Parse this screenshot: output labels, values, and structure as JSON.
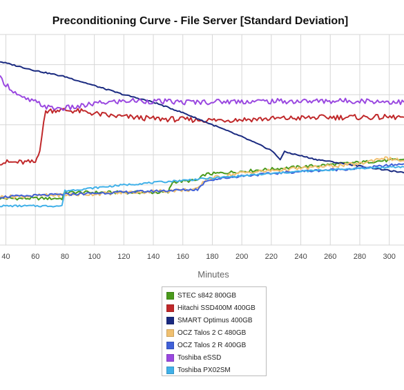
{
  "chart_data": {
    "type": "line",
    "title": "Preconditioning Curve - File Server [Standard Deviation]",
    "xlabel": "Minutes",
    "ylabel": "",
    "x_ticks": [
      40,
      60,
      80,
      100,
      120,
      140,
      160,
      180,
      200,
      220,
      240,
      260,
      280,
      300
    ],
    "xlim": [
      36,
      310
    ],
    "ylim": [
      0,
      7
    ],
    "grid": true,
    "legend_position": "bottom",
    "series": [
      {
        "name": "STEC s842 800GB",
        "color": "#4a9a1c",
        "points": [
          [
            36,
            1.55
          ],
          [
            50,
            1.55
          ],
          [
            78,
            1.55
          ],
          [
            80,
            1.75
          ],
          [
            100,
            1.75
          ],
          [
            150,
            1.75
          ],
          [
            153,
            2.1
          ],
          [
            170,
            2.15
          ],
          [
            175,
            2.35
          ],
          [
            200,
            2.45
          ],
          [
            240,
            2.6
          ],
          [
            280,
            2.75
          ],
          [
            310,
            2.85
          ]
        ]
      },
      {
        "name": "Hitachi SSD400M 400GB",
        "color": "#c0282a",
        "points": [
          [
            36,
            2.75
          ],
          [
            60,
            2.75
          ],
          [
            63,
            3.2
          ],
          [
            67,
            4.45
          ],
          [
            75,
            4.5
          ],
          [
            90,
            4.45
          ],
          [
            110,
            4.3
          ],
          [
            140,
            4.2
          ],
          [
            180,
            4.15
          ],
          [
            220,
            4.2
          ],
          [
            260,
            4.25
          ],
          [
            310,
            4.25
          ]
        ]
      },
      {
        "name": "SMART Optimus 400GB",
        "color": "#1a2a80",
        "points": [
          [
            36,
            6.1
          ],
          [
            60,
            5.8
          ],
          [
            80,
            5.6
          ],
          [
            100,
            5.3
          ],
          [
            120,
            5.0
          ],
          [
            140,
            4.75
          ],
          [
            160,
            4.4
          ],
          [
            180,
            4.0
          ],
          [
            200,
            3.6
          ],
          [
            220,
            3.15
          ],
          [
            226,
            2.85
          ],
          [
            229,
            3.1
          ],
          [
            250,
            2.85
          ],
          [
            270,
            2.7
          ],
          [
            290,
            2.55
          ],
          [
            310,
            2.4
          ]
        ]
      },
      {
        "name": "OCZ Talos 2 C 480GB",
        "color": "#f0c070",
        "points": [
          [
            36,
            1.6
          ],
          [
            100,
            1.7
          ],
          [
            170,
            1.85
          ],
          [
            176,
            2.2
          ],
          [
            200,
            2.4
          ],
          [
            240,
            2.55
          ],
          [
            280,
            2.7
          ],
          [
            295,
            2.9
          ],
          [
            310,
            2.8
          ]
        ]
      },
      {
        "name": "OCZ Talos 2 R 400GB",
        "color": "#4060d8",
        "points": [
          [
            36,
            1.6
          ],
          [
            100,
            1.72
          ],
          [
            170,
            1.85
          ],
          [
            176,
            2.15
          ],
          [
            200,
            2.3
          ],
          [
            240,
            2.45
          ],
          [
            280,
            2.55
          ],
          [
            310,
            2.7
          ]
        ]
      },
      {
        "name": "Toshiba eSSD",
        "color": "#9a48e0",
        "points": [
          [
            36,
            5.55
          ],
          [
            40,
            5.35
          ],
          [
            50,
            4.9
          ],
          [
            60,
            4.75
          ],
          [
            70,
            4.55
          ],
          [
            80,
            4.55
          ],
          [
            90,
            4.6
          ],
          [
            100,
            4.7
          ],
          [
            110,
            4.75
          ],
          [
            125,
            4.8
          ],
          [
            160,
            4.75
          ],
          [
            200,
            4.78
          ],
          [
            240,
            4.78
          ],
          [
            280,
            4.8
          ],
          [
            310,
            4.75
          ]
        ]
      },
      {
        "name": "Toshiba PX02SM",
        "color": "#40b0e8",
        "points": [
          [
            36,
            1.3
          ],
          [
            78,
            1.3
          ],
          [
            80,
            1.8
          ],
          [
            100,
            1.9
          ],
          [
            120,
            2.0
          ],
          [
            160,
            2.15
          ],
          [
            200,
            2.3
          ],
          [
            240,
            2.45
          ],
          [
            280,
            2.55
          ],
          [
            310,
            2.6
          ]
        ]
      }
    ]
  }
}
